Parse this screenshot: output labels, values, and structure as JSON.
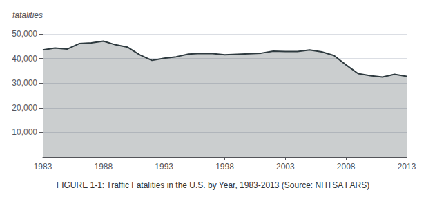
{
  "chart_data": {
    "type": "line",
    "title": "FIGURE 1-1: Traffic Fatalities in the U.S. by Year, 1983-2013 (Source: NHTSA FARS)",
    "y_label": "fatalities",
    "x": [
      1983,
      1984,
      1985,
      1986,
      1987,
      1988,
      1989,
      1990,
      1991,
      1992,
      1993,
      1994,
      1995,
      1996,
      1997,
      1998,
      1999,
      2000,
      2001,
      2002,
      2003,
      2004,
      2005,
      2006,
      2007,
      2008,
      2009,
      2010,
      2011,
      2012,
      2013
    ],
    "values": [
      43500,
      44257,
      43825,
      46087,
      46390,
      47087,
      45582,
      44599,
      41508,
      39250,
      40150,
      40716,
      41817,
      42065,
      42013,
      41501,
      41717,
      41945,
      42196,
      43005,
      42884,
      42836,
      43510,
      42708,
      41259,
      37423,
      33883,
      32999,
      32479,
      33561,
      32719
    ],
    "color": "#2e3a3f",
    "xlim": [
      1983,
      2013
    ],
    "xticks": [
      1983,
      1988,
      1993,
      1998,
      2003,
      2008,
      2013
    ],
    "ylim": [
      0,
      52000
    ],
    "yticks": [
      {
        "value": 10000,
        "label": "10,000"
      },
      {
        "value": 20000,
        "label": "20,000"
      },
      {
        "value": 30000,
        "label": "30,000"
      },
      {
        "value": 40000,
        "label": "40,000"
      },
      {
        "value": 50000,
        "label": "50,000"
      }
    ],
    "grid": true
  }
}
